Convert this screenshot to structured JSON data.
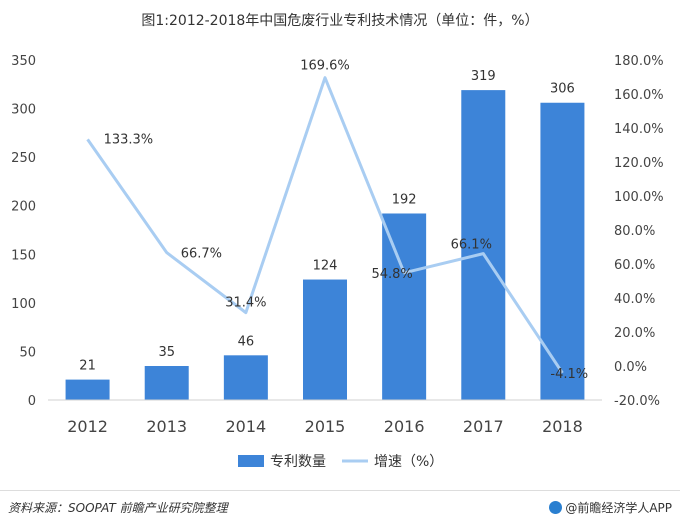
{
  "title": "图1:2012-2018年中国危废行业专利技术情况（单位：件，%）",
  "chart_data": {
    "type": "bar+line",
    "categories": [
      "2012",
      "2013",
      "2014",
      "2015",
      "2016",
      "2017",
      "2018"
    ],
    "series": [
      {
        "name": "专利数量",
        "type": "bar",
        "axis": "left",
        "values": [
          21,
          35,
          46,
          124,
          192,
          319,
          306
        ],
        "labels": [
          "21",
          "35",
          "46",
          "124",
          "192",
          "319",
          "306"
        ],
        "color": "#3d84d8"
      },
      {
        "name": "增速（%）",
        "type": "line",
        "axis": "right",
        "values": [
          133.3,
          66.7,
          31.4,
          169.6,
          54.8,
          66.1,
          -4.1
        ],
        "labels": [
          "133.3%",
          "66.7%",
          "31.4%",
          "169.6%",
          "54.8%",
          "66.1%",
          "-4.1%"
        ],
        "color": "#a9cdf2"
      }
    ],
    "y_left": {
      "min": 0,
      "max": 350,
      "ticks": [
        "0",
        "50",
        "100",
        "150",
        "200",
        "250",
        "300",
        "350"
      ]
    },
    "y_right": {
      "min": -20,
      "max": 180,
      "ticks": [
        "-20.0%",
        "0.0%",
        "20.0%",
        "40.0%",
        "60.0%",
        "80.0%",
        "100.0%",
        "120.0%",
        "140.0%",
        "160.0%",
        "180.0%"
      ]
    },
    "legend_position": "bottom",
    "grid": false
  },
  "footer": {
    "source": "资料来源：SOOPAT 前瞻产业研究院整理",
    "brand": "@前瞻经济学人APP"
  }
}
